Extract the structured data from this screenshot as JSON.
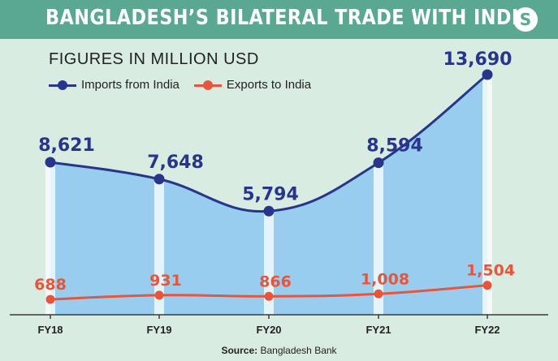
{
  "header": {
    "title": "BANGLADESH’S BILATERAL TRADE WITH INDIA",
    "logo": "S"
  },
  "subtitle": "FIGURES IN MILLION USD",
  "source": {
    "label": "Source:",
    "text": "Bangladesh Bank"
  },
  "colors": {
    "imports": "#27358c",
    "exports": "#e8553a",
    "area": "#99cdf0",
    "title_bar": "#5aa891",
    "background": "#d8ece2"
  },
  "chart_data": {
    "type": "line",
    "categories": [
      "FY18",
      "FY19",
      "FY20",
      "FY21",
      "FY22"
    ],
    "series": [
      {
        "name": "Imports from India",
        "values": [
          8621,
          7648,
          5794,
          8594,
          13690
        ],
        "labels": [
          "8,621",
          "7,648",
          "5,794",
          "8,594",
          "13,690"
        ],
        "fill": "area"
      },
      {
        "name": "Exports to India",
        "values": [
          688,
          931,
          866,
          1008,
          1504
        ],
        "labels": [
          "688",
          "931",
          "866",
          "1,008",
          "1,504"
        ]
      }
    ],
    "ylim": [
      -200,
      13690
    ],
    "legend_position": "top-left",
    "grid": false
  }
}
